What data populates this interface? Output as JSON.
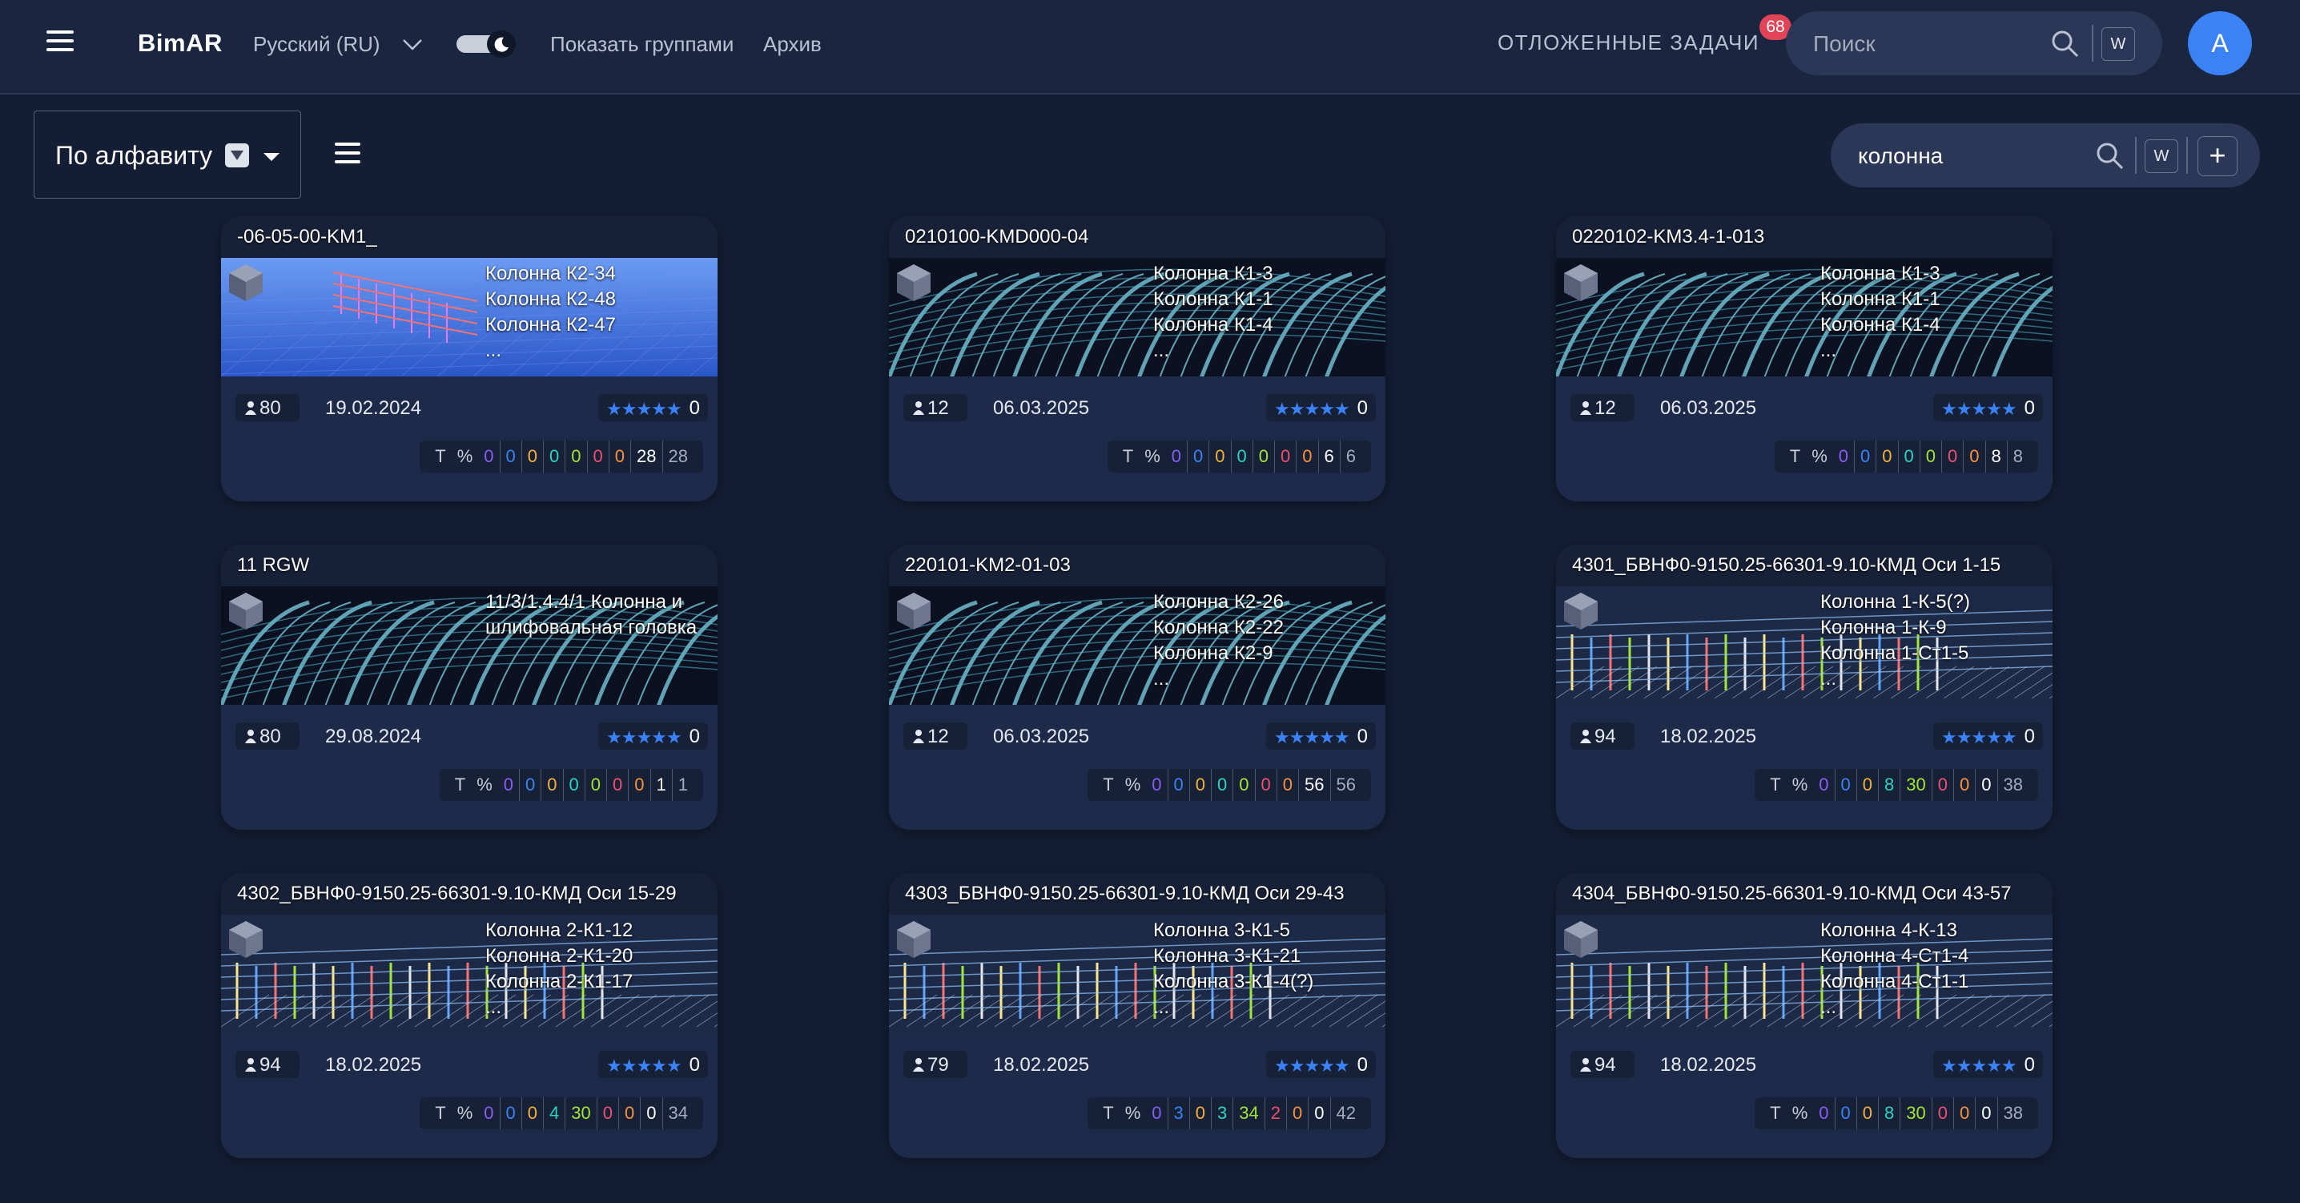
{
  "header": {
    "brand": "BimAR",
    "language": "Русский (RU)",
    "show_groups": "Показать группами",
    "archive": "Архив",
    "deferred_tasks": "ОТЛОЖЕННЫЕ ЗАДАЧИ",
    "deferred_count": "68",
    "search_placeholder": "Поиск",
    "w_label": "W",
    "avatar_letter": "A"
  },
  "toolbar": {
    "sort_label": "По алфавиту",
    "search_value": "колонна",
    "w_label": "W",
    "add_label": "+"
  },
  "colors": {
    "accent": "#3b82f6",
    "badge": "#e04456",
    "background": "#131d33",
    "card": "#1e2a4a"
  },
  "counter_headers": [
    "Т",
    "%"
  ],
  "cards": [
    {
      "title": "-06-05-00-KM1_",
      "thumb": "blue",
      "names": [
        "Колонна К2-34",
        "Колонна К2-48",
        "Колонна К2-47",
        "..."
      ],
      "users": "80",
      "date": "19.02.2024",
      "rating": "0",
      "counters": [
        "0",
        "0",
        "0",
        "0",
        "0",
        "0",
        "0",
        "28",
        "28"
      ]
    },
    {
      "title": "0210100-KMD000-04",
      "thumb": "arch",
      "names": [
        "Колонна К1-3",
        "Колонна К1-1",
        "Колонна К1-4",
        "..."
      ],
      "users": "12",
      "date": "06.03.2025",
      "rating": "0",
      "counters": [
        "0",
        "0",
        "0",
        "0",
        "0",
        "0",
        "0",
        "6",
        "6"
      ]
    },
    {
      "title": "0220102-KM3.4-1-013",
      "thumb": "arch",
      "names": [
        "Колонна К1-3",
        "Колонна К1-1",
        "Колонна К1-4",
        "..."
      ],
      "users": "12",
      "date": "06.03.2025",
      "rating": "0",
      "counters": [
        "0",
        "0",
        "0",
        "0",
        "0",
        "0",
        "0",
        "8",
        "8"
      ]
    },
    {
      "title": "11 RGW",
      "thumb": "arch",
      "names": [
        "11/3/1.4.4/1 Колонна и шлифовальная головка"
      ],
      "users": "80",
      "date": "29.08.2024",
      "rating": "0",
      "counters": [
        "0",
        "0",
        "0",
        "0",
        "0",
        "0",
        "0",
        "1",
        "1"
      ]
    },
    {
      "title": "220101-KM2-01-03",
      "thumb": "arch",
      "names": [
        "Колонна К2-26",
        "Колонна К2-22",
        "Колонна К2-9",
        "..."
      ],
      "users": "12",
      "date": "06.03.2025",
      "rating": "0",
      "counters": [
        "0",
        "0",
        "0",
        "0",
        "0",
        "0",
        "0",
        "56",
        "56"
      ]
    },
    {
      "title": "4301_БВНФ0-9150.25-66301-9.10-КМД Оси 1-15",
      "thumb": "frame",
      "names": [
        "Колонна 1-К-5(?)",
        "Колонна 1-К-9",
        "Колонна 1-Ст1-5",
        "..."
      ],
      "users": "94",
      "date": "18.02.2025",
      "rating": "0",
      "counters": [
        "0",
        "0",
        "0",
        "8",
        "30",
        "0",
        "0",
        "0",
        "38"
      ]
    },
    {
      "title": "4302_БВНФ0-9150.25-66301-9.10-КМД Оси 15-29",
      "thumb": "frame",
      "names": [
        "Колонна 2-К1-12",
        "Колонна 2-К1-20",
        "Колонна 2-К1-17",
        "..."
      ],
      "users": "94",
      "date": "18.02.2025",
      "rating": "0",
      "counters": [
        "0",
        "0",
        "0",
        "4",
        "30",
        "0",
        "0",
        "0",
        "34"
      ]
    },
    {
      "title": "4303_БВНФ0-9150.25-66301-9.10-КМД Оси 29-43",
      "thumb": "frame",
      "names": [
        "Колонна 3-К1-5",
        "Колонна 3-К1-21",
        "Колонна 3-К1-4(?)",
        "..."
      ],
      "users": "79",
      "date": "18.02.2025",
      "rating": "0",
      "counters": [
        "0",
        "3",
        "0",
        "3",
        "34",
        "2",
        "0",
        "0",
        "42"
      ]
    },
    {
      "title": "4304_БВНФ0-9150.25-66301-9.10-КМД Оси 43-57",
      "thumb": "frame",
      "names": [
        "Колонна 4-К-13",
        "Колонна 4-Ст1-4",
        "Колонна 4-Ст1-1",
        "..."
      ],
      "users": "94",
      "date": "18.02.2025",
      "rating": "0",
      "counters": [
        "0",
        "0",
        "0",
        "8",
        "30",
        "0",
        "0",
        "0",
        "38"
      ]
    }
  ]
}
